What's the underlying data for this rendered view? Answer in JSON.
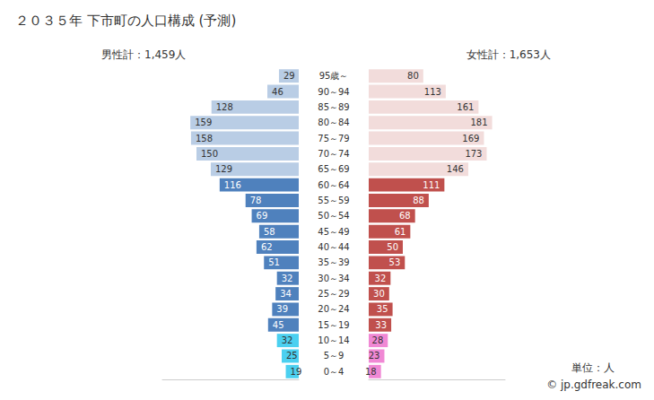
{
  "chart_data": {
    "type": "bar",
    "orientation": "horizontal",
    "title": "２０３５年 下市町の人口構成 (予測)",
    "annotations": [
      "単位：人",
      "© jp.gdfreak.com"
    ],
    "categories": [
      "95歳～",
      "90～94",
      "85～89",
      "80～84",
      "75～79",
      "70～74",
      "65～69",
      "60～64",
      "55～59",
      "50～54",
      "45～49",
      "40～44",
      "35～39",
      "30～34",
      "25～29",
      "20～24",
      "15～19",
      "10～14",
      "5～9",
      "0～4"
    ],
    "xlim": [
      0,
      200
    ],
    "tick_labels": false,
    "grid": false,
    "data_labels": true,
    "series": [
      {
        "name": "男性計：1,459人",
        "values": [
          29,
          46,
          128,
          159,
          158,
          150,
          129,
          116,
          78,
          69,
          58,
          62,
          51,
          32,
          34,
          39,
          45,
          32,
          25,
          19
        ],
        "colors": [
          "#b9cde5",
          "#b9cde5",
          "#b9cde5",
          "#b9cde5",
          "#b9cde5",
          "#b9cde5",
          "#b9cde5",
          "#4f81bd",
          "#4f81bd",
          "#4f81bd",
          "#4f81bd",
          "#4f81bd",
          "#4f81bd",
          "#4f81bd",
          "#4f81bd",
          "#4f81bd",
          "#4f81bd",
          "#4bd0f0",
          "#4bd0f0",
          "#4bd0f0"
        ]
      },
      {
        "name": "女性計：1,653人",
        "values": [
          80,
          113,
          161,
          181,
          169,
          173,
          146,
          111,
          88,
          68,
          61,
          50,
          53,
          32,
          30,
          35,
          33,
          28,
          23,
          18
        ],
        "colors": [
          "#f2dcdb",
          "#f2dcdb",
          "#f2dcdb",
          "#f2dcdb",
          "#f2dcdb",
          "#f2dcdb",
          "#f2dcdb",
          "#c0504d",
          "#c0504d",
          "#c0504d",
          "#c0504d",
          "#c0504d",
          "#c0504d",
          "#c0504d",
          "#c0504d",
          "#c0504d",
          "#c0504d",
          "#f088d4",
          "#f088d4",
          "#f088d4"
        ]
      }
    ]
  }
}
